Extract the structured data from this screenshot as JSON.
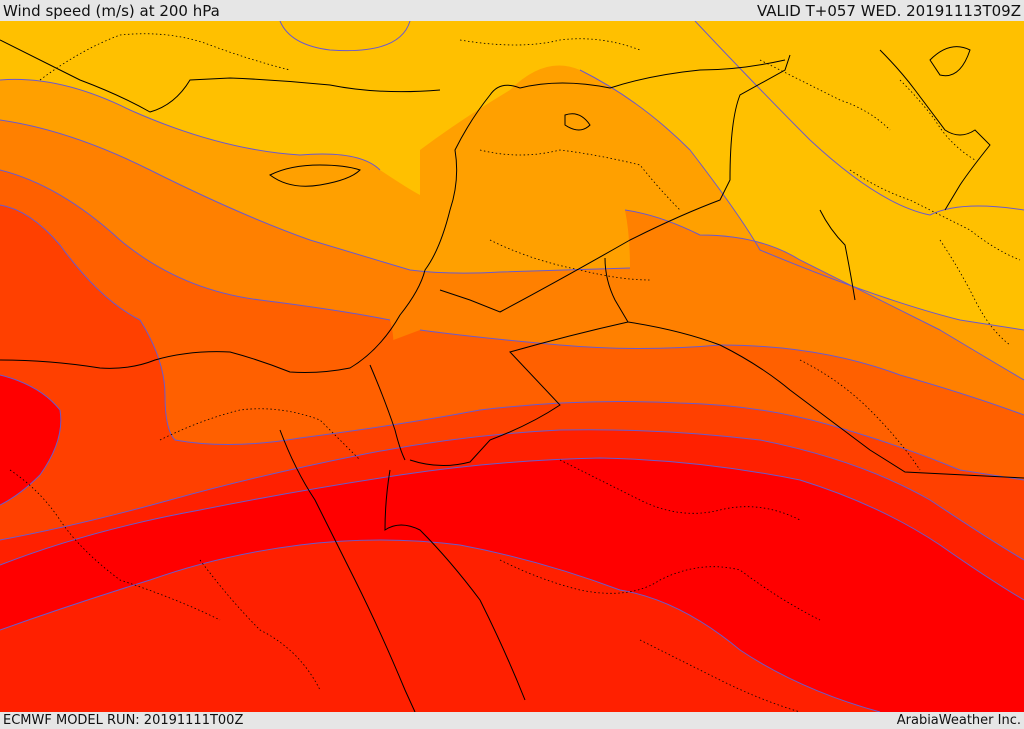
{
  "header": {
    "title": "Wind speed (m/s) at 200 hPa",
    "valid": "VALID T+057 WED. 20191113T09Z"
  },
  "footer": {
    "model_run": "ECMWF MODEL RUN: 20191111T00Z",
    "credit": "ArabiaWeather Inc."
  },
  "colors": {
    "band_1": "#ffe000",
    "band_2": "#ffc000",
    "band_3": "#ffa000",
    "band_4": "#ff8000",
    "band_5": "#ff6000",
    "band_6": "#ff4000",
    "band_7": "#ff2000",
    "band_8": "#ff0000",
    "contour": "#6a5acd",
    "border": "#000000"
  }
}
